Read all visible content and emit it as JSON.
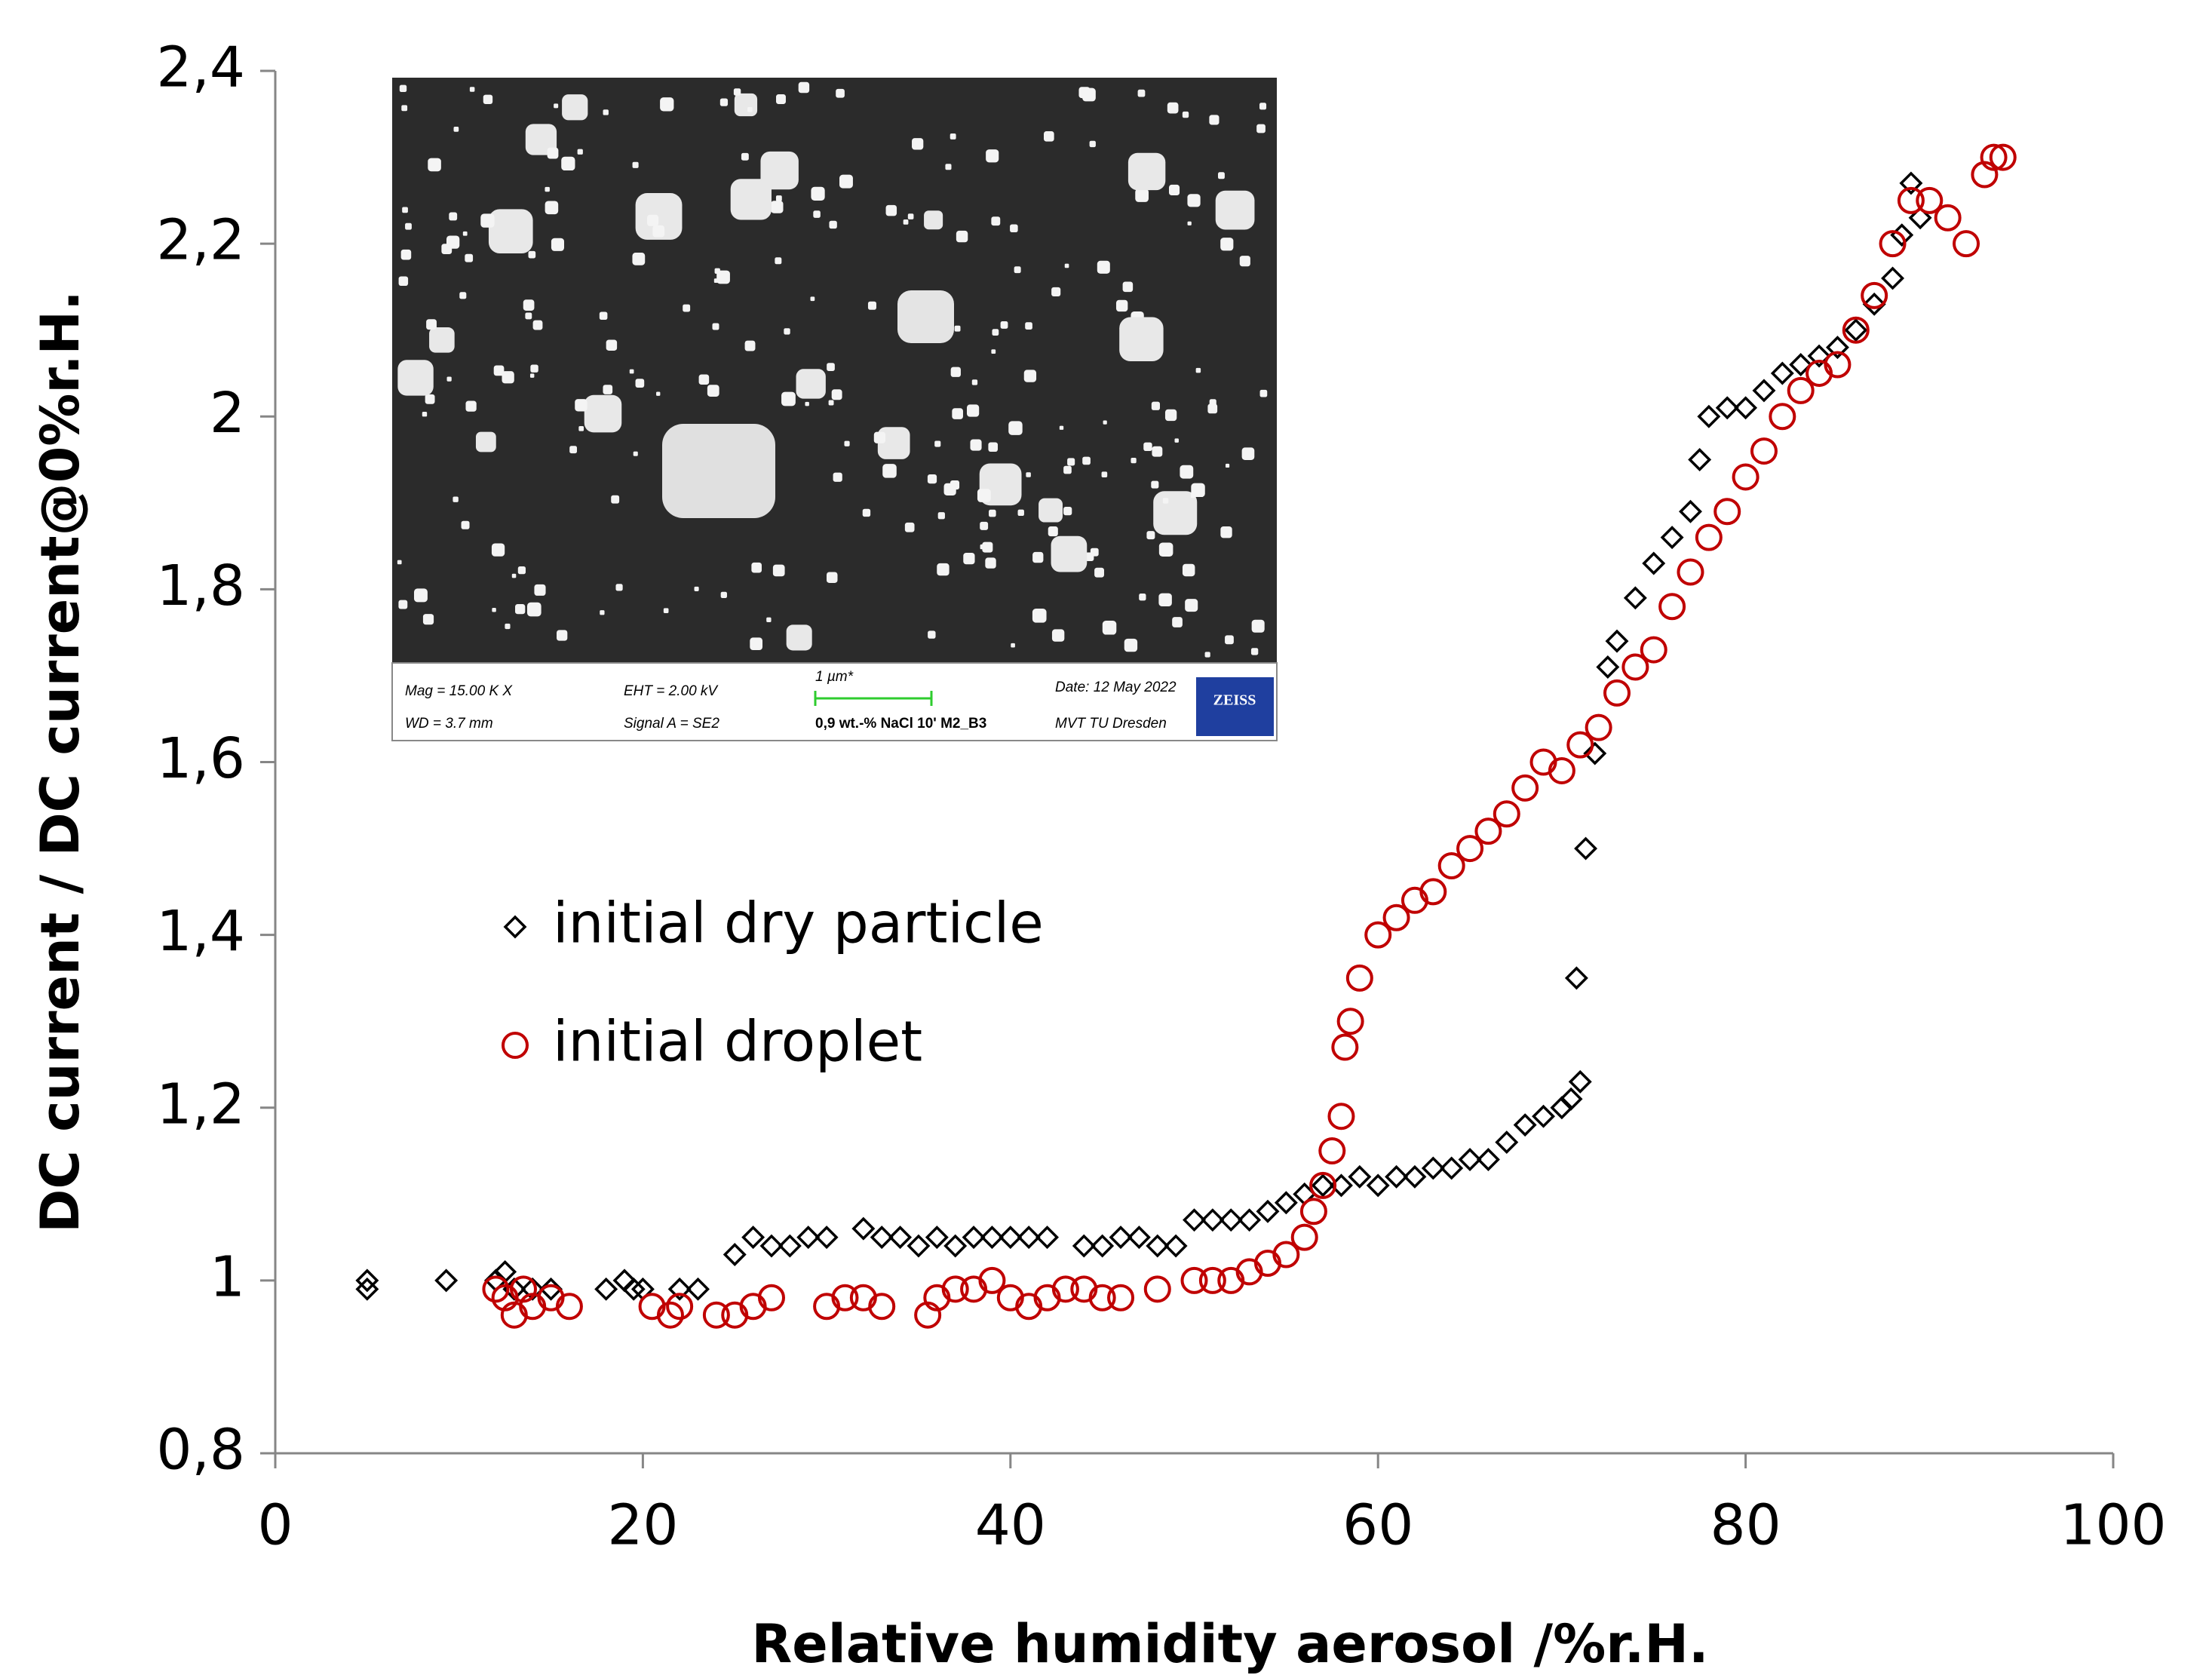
{
  "chart_data": {
    "type": "scatter",
    "x_label": "Relative humidity aerosol /%r.H.",
    "y_label": "DC current / DC current@0%r.H.",
    "xlim": [
      0,
      100
    ],
    "xticks": [
      0,
      20,
      40,
      60,
      80,
      100
    ],
    "ylim": [
      0.8,
      2.4
    ],
    "yticks": [
      {
        "value": 0.8,
        "label": "0,8"
      },
      1,
      {
        "value": 1.2,
        "label": "1,2"
      },
      {
        "value": 1.4,
        "label": "1,4"
      },
      {
        "value": 1.6,
        "label": "1,6"
      },
      {
        "value": 1.8,
        "label": "1,8"
      },
      2,
      {
        "value": 2.2,
        "label": "2,2"
      },
      {
        "value": 2.4,
        "label": "2,4"
      }
    ],
    "legend": "upper left",
    "series": [
      {
        "name": "initial dry particle",
        "color": "#000000",
        "marker": "diamond",
        "x": [
          5,
          5,
          9.3,
          12,
          12.5,
          13,
          14,
          15,
          18,
          19,
          19.5,
          20,
          22,
          23,
          25,
          26,
          27,
          28,
          29,
          30,
          32,
          33,
          34,
          35,
          36,
          37,
          38,
          39,
          40,
          41,
          42,
          44,
          45,
          46,
          47,
          48,
          49,
          50,
          51,
          52,
          53,
          54,
          55,
          56,
          57,
          58,
          59,
          60,
          61,
          62,
          63,
          64,
          65,
          66,
          67,
          68,
          69,
          70,
          70.5,
          71,
          70.8,
          71.3,
          71.8,
          72.5,
          73,
          74,
          75,
          76,
          77,
          77.5,
          78,
          79,
          80,
          81,
          82,
          83,
          84,
          85,
          86,
          87,
          88,
          88.5,
          89,
          89.5
        ],
        "values": [
          0.99,
          1.0,
          1.0,
          1.0,
          1.01,
          0.99,
          0.99,
          0.99,
          0.99,
          1.0,
          0.99,
          0.99,
          0.99,
          0.99,
          1.03,
          1.05,
          1.04,
          1.04,
          1.05,
          1.05,
          1.06,
          1.05,
          1.05,
          1.04,
          1.05,
          1.04,
          1.05,
          1.05,
          1.05,
          1.05,
          1.05,
          1.04,
          1.04,
          1.05,
          1.05,
          1.04,
          1.04,
          1.07,
          1.07,
          1.07,
          1.07,
          1.08,
          1.09,
          1.1,
          1.11,
          1.11,
          1.12,
          1.11,
          1.12,
          1.12,
          1.13,
          1.13,
          1.14,
          1.14,
          1.16,
          1.18,
          1.19,
          1.2,
          1.21,
          1.23,
          1.35,
          1.5,
          1.61,
          1.71,
          1.74,
          1.79,
          1.83,
          1.86,
          1.89,
          1.95,
          2.0,
          2.01,
          2.01,
          2.03,
          2.05,
          2.06,
          2.07,
          2.08,
          2.1,
          2.13,
          2.16,
          2.21,
          2.27,
          2.23
        ]
      },
      {
        "name": "initial droplet",
        "color": "#c00000",
        "marker": "circle",
        "x": [
          12,
          12.5,
          13,
          13.5,
          14,
          15,
          16,
          20.5,
          21.5,
          22,
          24,
          25,
          26,
          27,
          30,
          31,
          32,
          33,
          35.5,
          36,
          37,
          38,
          39,
          40,
          41,
          42,
          43,
          44,
          45,
          46,
          48,
          50,
          51,
          52,
          53,
          54,
          55,
          56,
          56.5,
          57,
          57.5,
          58,
          58.2,
          58.5,
          59,
          60,
          61,
          62,
          63,
          64,
          65,
          66,
          67,
          68,
          69,
          70,
          71,
          72,
          73,
          74,
          75,
          76,
          77,
          78,
          79,
          80,
          81,
          82,
          83,
          84,
          85,
          86,
          87,
          88,
          89,
          90,
          91,
          92,
          93,
          93.5,
          94
        ],
        "values": [
          0.99,
          0.98,
          0.96,
          0.99,
          0.97,
          0.98,
          0.97,
          0.97,
          0.96,
          0.97,
          0.96,
          0.96,
          0.97,
          0.98,
          0.97,
          0.98,
          0.98,
          0.97,
          0.96,
          0.98,
          0.99,
          0.99,
          1.0,
          0.98,
          0.97,
          0.98,
          0.99,
          0.99,
          0.98,
          0.98,
          0.99,
          1.0,
          1.0,
          1.0,
          1.01,
          1.02,
          1.03,
          1.05,
          1.08,
          1.11,
          1.15,
          1.19,
          1.27,
          1.3,
          1.35,
          1.4,
          1.42,
          1.44,
          1.45,
          1.48,
          1.5,
          1.52,
          1.54,
          1.57,
          1.6,
          1.59,
          1.62,
          1.64,
          1.68,
          1.71,
          1.73,
          1.78,
          1.82,
          1.86,
          1.89,
          1.93,
          1.96,
          2.0,
          2.03,
          2.05,
          2.06,
          2.1,
          2.14,
          2.2,
          2.25,
          2.25,
          2.23,
          2.2,
          2.28,
          2.3,
          2.3
        ]
      }
    ]
  },
  "inset": {
    "mag": "Mag =  15.00 K X",
    "wd": "WD =  3.7 mm",
    "eht": "EHT =  2.00 kV",
    "signal": "Signal A = SE2",
    "scale": "1 µm*",
    "sample": "0,9 wt.-% NaCl 10' M2_B3",
    "date": "Date: 12 May 2022",
    "lab": "MVT TU Dresden",
    "logo": "ZEISS"
  }
}
